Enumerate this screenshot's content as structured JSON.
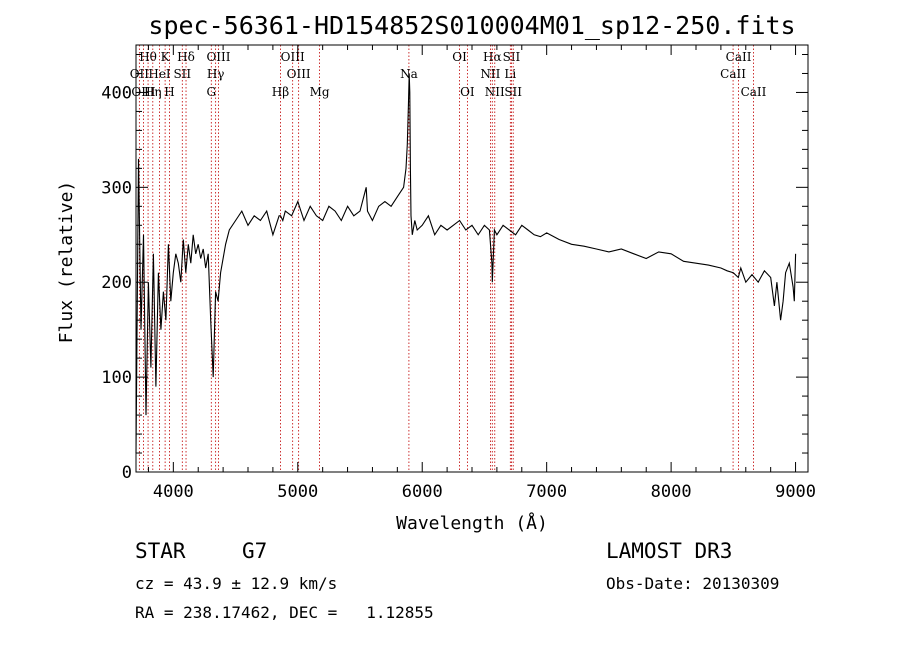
{
  "chart_data": {
    "type": "line",
    "title": "spec-56361-HD154852S010004M01_sp12-250.fits",
    "xlabel": "Wavelength (Å)",
    "ylabel": "Flux (relative)",
    "xlim": [
      3700,
      9100
    ],
    "ylim": [
      0,
      450
    ],
    "xticks": [
      4000,
      5000,
      6000,
      7000,
      8000,
      9000
    ],
    "yticks": [
      0,
      100,
      200,
      300,
      400
    ],
    "grid": false,
    "series": [
      {
        "name": "spectrum",
        "x": [
          3700,
          3720,
          3740,
          3760,
          3780,
          3800,
          3820,
          3840,
          3860,
          3880,
          3900,
          3920,
          3940,
          3960,
          3980,
          4000,
          4020,
          4040,
          4060,
          4080,
          4100,
          4120,
          4140,
          4160,
          4180,
          4200,
          4220,
          4240,
          4260,
          4280,
          4300,
          4320,
          4340,
          4360,
          4380,
          4400,
          4420,
          4450,
          4500,
          4550,
          4600,
          4650,
          4700,
          4750,
          4800,
          4850,
          4861,
          4880,
          4900,
          4950,
          5000,
          5050,
          5100,
          5150,
          5200,
          5250,
          5300,
          5350,
          5400,
          5450,
          5500,
          5550,
          5560,
          5600,
          5650,
          5700,
          5750,
          5800,
          5850,
          5870,
          5880,
          5890,
          5895,
          5900,
          5905,
          5910,
          5920,
          5940,
          5960,
          6000,
          6050,
          6100,
          6150,
          6200,
          6250,
          6300,
          6350,
          6400,
          6450,
          6500,
          6540,
          6560,
          6563,
          6580,
          6600,
          6650,
          6700,
          6750,
          6800,
          6850,
          6900,
          6950,
          7000,
          7100,
          7200,
          7300,
          7400,
          7500,
          7600,
          7700,
          7800,
          7900,
          8000,
          8100,
          8200,
          8300,
          8400,
          8450,
          8500,
          8540,
          8560,
          8600,
          8650,
          8700,
          8750,
          8800,
          8830,
          8850,
          8880,
          8900,
          8920,
          8950,
          8980,
          8990,
          9000
        ],
        "y": [
          20,
          330,
          150,
          250,
          60,
          200,
          110,
          230,
          90,
          210,
          150,
          190,
          160,
          240,
          180,
          210,
          230,
          220,
          200,
          245,
          210,
          240,
          220,
          250,
          230,
          240,
          225,
          235,
          215,
          230,
          160,
          100,
          190,
          180,
          210,
          225,
          240,
          255,
          265,
          275,
          260,
          270,
          265,
          275,
          250,
          270,
          270,
          265,
          275,
          270,
          285,
          265,
          280,
          270,
          265,
          280,
          275,
          265,
          280,
          270,
          275,
          300,
          275,
          265,
          280,
          285,
          280,
          290,
          300,
          320,
          345,
          390,
          420,
          400,
          320,
          270,
          250,
          265,
          255,
          260,
          270,
          250,
          260,
          255,
          260,
          265,
          255,
          260,
          250,
          260,
          255,
          220,
          200,
          255,
          250,
          260,
          255,
          250,
          260,
          255,
          250,
          248,
          252,
          245,
          240,
          238,
          235,
          232,
          235,
          230,
          225,
          232,
          230,
          222,
          220,
          218,
          215,
          212,
          210,
          205,
          215,
          200,
          208,
          200,
          212,
          205,
          175,
          200,
          160,
          180,
          210,
          220,
          195,
          180,
          230
        ]
      }
    ],
    "emission_lines": [
      {
        "label": "Hθ",
        "x": 3797,
        "row": 0
      },
      {
        "label": "OII",
        "x": 3727,
        "row": 1
      },
      {
        "label": "OIII",
        "x": 3760,
        "row": 2
      },
      {
        "label": "K",
        "x": 3934,
        "row": 0
      },
      {
        "label": "HeI",
        "x": 3889,
        "row": 1
      },
      {
        "label": "Hη",
        "x": 3835,
        "row": 2
      },
      {
        "label": "Hδ",
        "x": 4102,
        "row": 0
      },
      {
        "label": "SII",
        "x": 4072,
        "row": 1
      },
      {
        "label": "H",
        "x": 3969,
        "row": 2
      },
      {
        "label": "OIII",
        "x": 4363,
        "row": 0
      },
      {
        "label": "Hγ",
        "x": 4340,
        "row": 1
      },
      {
        "label": "G",
        "x": 4305,
        "row": 2
      },
      {
        "label": "Hβ",
        "x": 4861,
        "row": 2
      },
      {
        "label": "OIII",
        "x": 4959,
        "row": 0
      },
      {
        "label": "OIII",
        "x": 5007,
        "row": 1
      },
      {
        "label": "Mg",
        "x": 5175,
        "row": 2
      },
      {
        "label": "Na",
        "x": 5893,
        "row": 1
      },
      {
        "label": "OI",
        "x": 6300,
        "row": 0
      },
      {
        "label": "OI",
        "x": 6363,
        "row": 2
      },
      {
        "label": "Hα",
        "x": 6563,
        "row": 0
      },
      {
        "label": "NII",
        "x": 6548,
        "row": 1
      },
      {
        "label": "NII",
        "x": 6583,
        "row": 2
      },
      {
        "label": "SII",
        "x": 6717,
        "row": 0
      },
      {
        "label": "Li",
        "x": 6708,
        "row": 1
      },
      {
        "label": "SII",
        "x": 6731,
        "row": 2
      },
      {
        "label": "CaII",
        "x": 8542,
        "row": 0
      },
      {
        "label": "CaII",
        "x": 8498,
        "row": 1
      },
      {
        "label": "CaII",
        "x": 8662,
        "row": 2
      }
    ]
  },
  "info": {
    "object_type": "STAR",
    "subclass": "G7",
    "survey": "LAMOST DR3",
    "cz": "cz = 43.9 ± 12.9 km/s",
    "obs_date": "Obs-Date: 20130309",
    "coords": "RA = 238.17462, DEC =   1.12855"
  }
}
